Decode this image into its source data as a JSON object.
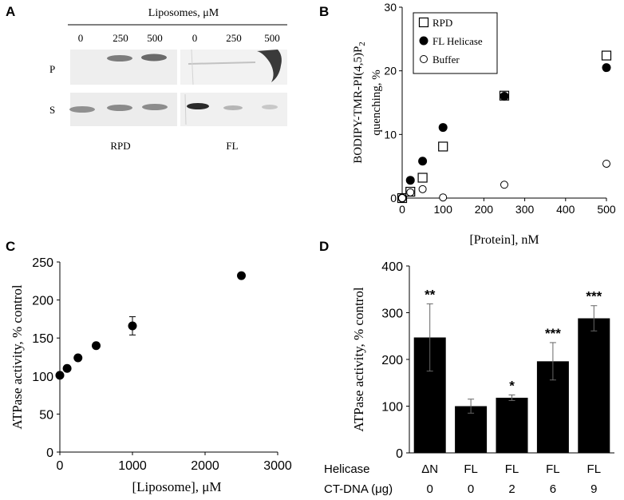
{
  "panels": {
    "a": {
      "letter": "A",
      "header": "Liposomes, μM",
      "concentrations": [
        "0",
        "250",
        "500",
        "0",
        "250",
        "500"
      ],
      "rows": [
        "P",
        "S"
      ],
      "groups": [
        "RPD",
        "FL"
      ]
    },
    "b": {
      "letter": "B"
    },
    "c": {
      "letter": "C"
    },
    "d": {
      "letter": "D",
      "helicase_label": "Helicase",
      "dna_label": "CT-DNA (μg)"
    }
  },
  "chart_data": [
    {
      "id": "B",
      "type": "scatter",
      "title": "",
      "xlabel": "[Protein], nM",
      "ylabel": "BODIPY-TMR-PI(4,5)P2 quenching, %",
      "ylabel_line1": "BODIPY-TMR-PI(4,5)P",
      "ylabel_sub": "2",
      "ylabel_line2": "quenching, %",
      "xlim": [
        0,
        500
      ],
      "ylim": [
        0,
        30
      ],
      "xticks": [
        "0",
        "100",
        "200",
        "300",
        "400",
        "500"
      ],
      "yticks": [
        "0",
        "10",
        "20",
        "30"
      ],
      "legend_position": "top-left",
      "series": [
        {
          "name": "RPD",
          "marker": "open-square",
          "x": [
            0,
            20,
            50,
            100,
            250,
            500
          ],
          "y": [
            0,
            1,
            3.2,
            8.1,
            16.1,
            22.4
          ]
        },
        {
          "name": "FL Helicase",
          "marker": "filled-circle",
          "x": [
            0,
            20,
            50,
            100,
            250,
            500
          ],
          "y": [
            0,
            2.8,
            5.8,
            11.1,
            16.0,
            20.5
          ]
        },
        {
          "name": "Buffer",
          "marker": "open-circle",
          "x": [
            0,
            20,
            50,
            100,
            250,
            500
          ],
          "y": [
            0,
            0.9,
            1.4,
            0.1,
            2.1,
            5.4
          ]
        }
      ]
    },
    {
      "id": "C",
      "type": "scatter",
      "title": "",
      "xlabel": "[Liposome], μM",
      "ylabel": "ATPase activity, % control",
      "xlim": [
        0,
        3000
      ],
      "ylim": [
        0,
        250
      ],
      "xticks": [
        "0",
        "1000",
        "2000",
        "3000"
      ],
      "yticks": [
        "0",
        "50",
        "100",
        "150",
        "200",
        "250"
      ],
      "series": [
        {
          "name": "ATPase",
          "marker": "filled-circle",
          "x": [
            0,
            100,
            250,
            500,
            1000,
            2500
          ],
          "y": [
            101,
            110,
            124,
            140,
            166,
            232
          ],
          "err": [
            0,
            0,
            0,
            0,
            12,
            0
          ]
        }
      ]
    },
    {
      "id": "D",
      "type": "bar",
      "title": "",
      "xlabel": "",
      "ylabel": "ATPase activity, % control",
      "ylim": [
        0,
        400
      ],
      "yticks": [
        "0",
        "100",
        "200",
        "300",
        "400"
      ],
      "categories": [
        "ΔN",
        "FL",
        "FL",
        "FL",
        "FL"
      ],
      "dna_amounts": [
        "0",
        "0",
        "2",
        "6",
        "9"
      ],
      "values": [
        247,
        100,
        118,
        196,
        288
      ],
      "errors": [
        72,
        15,
        6,
        40,
        27
      ],
      "significance": [
        "**",
        "",
        "*",
        "***",
        "***"
      ]
    }
  ]
}
